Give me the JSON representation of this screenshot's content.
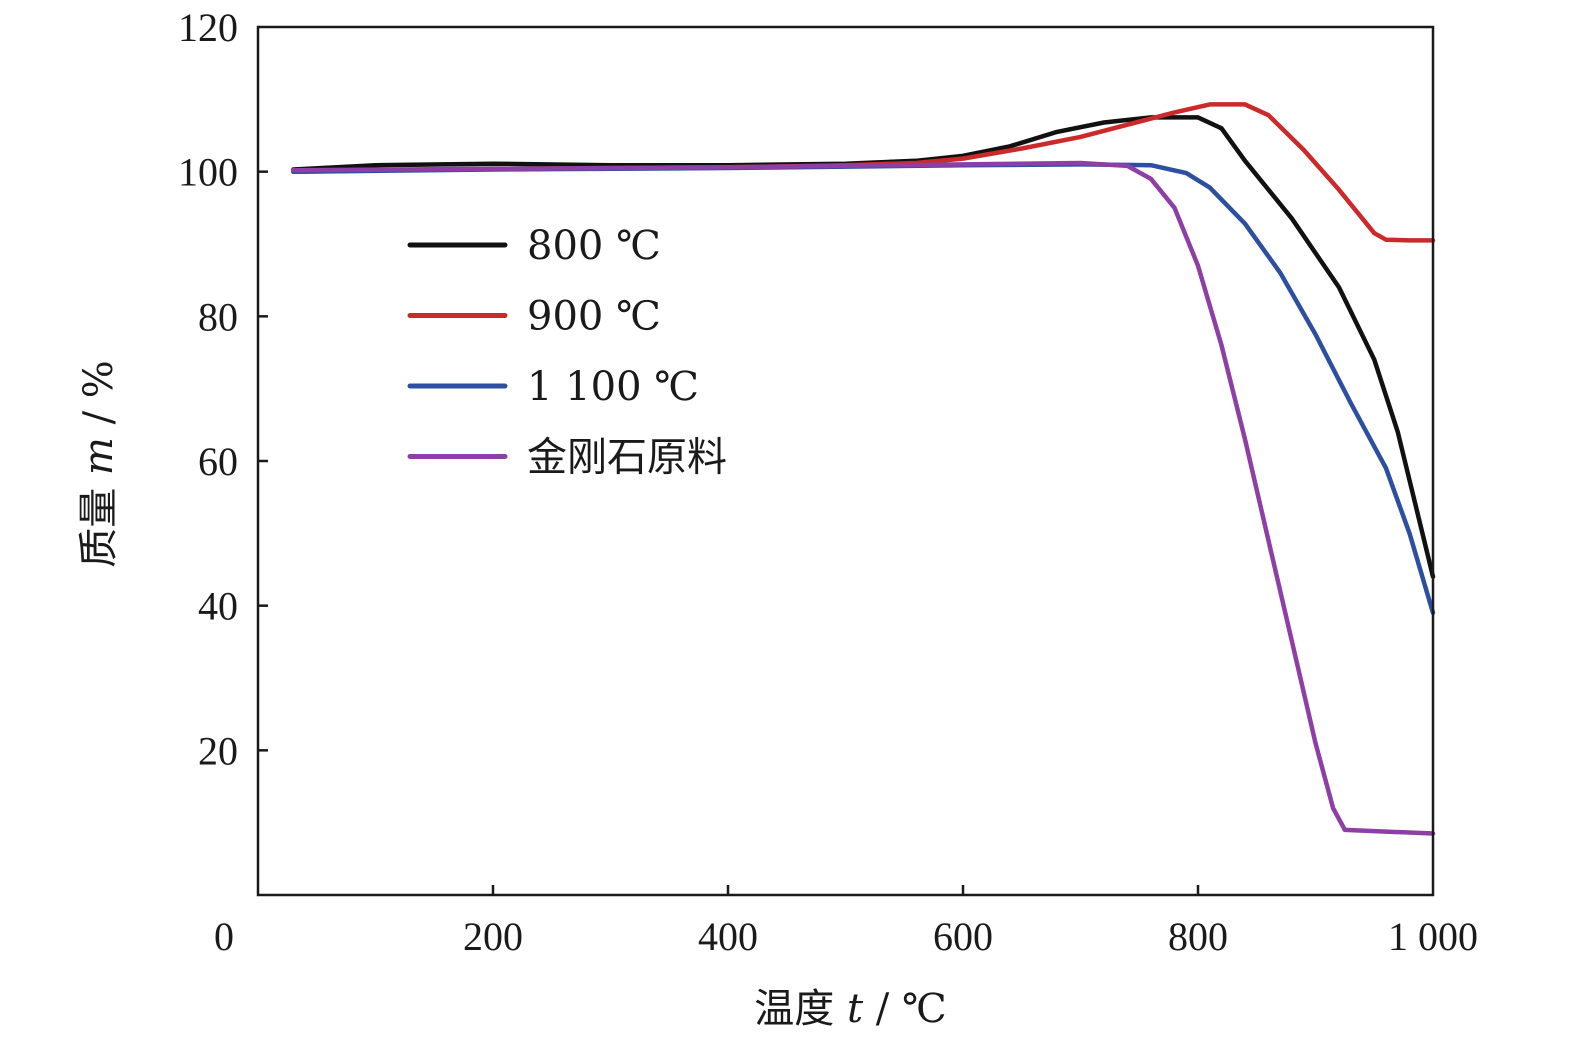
{
  "chart_data": {
    "type": "line",
    "title": "",
    "xlabel": {
      "prefix": "温度 ",
      "var": "t",
      "suffix": " / ℃"
    },
    "ylabel": {
      "prefix": "质量 ",
      "var": "m",
      "suffix": " / %"
    },
    "xlim": [
      0,
      1000
    ],
    "ylim": [
      0,
      120
    ],
    "xticks": [
      {
        "value": 0,
        "label": "0"
      },
      {
        "value": 200,
        "label": "200"
      },
      {
        "value": 400,
        "label": "400"
      },
      {
        "value": 600,
        "label": "600"
      },
      {
        "value": 800,
        "label": "800"
      },
      {
        "value": 1000,
        "label": "1 000"
      }
    ],
    "yticks": [
      {
        "value": 20,
        "label": "20"
      },
      {
        "value": 40,
        "label": "40"
      },
      {
        "value": 60,
        "label": "60"
      },
      {
        "value": 80,
        "label": "80"
      },
      {
        "value": 100,
        "label": "100"
      },
      {
        "value": 120,
        "label": "120"
      }
    ],
    "grid": false,
    "legend_position": "upper-left",
    "series": [
      {
        "name": "800 ℃",
        "color": "#111111",
        "points": [
          [
            30,
            100.3
          ],
          [
            100,
            100.9
          ],
          [
            200,
            101.1
          ],
          [
            300,
            100.9
          ],
          [
            400,
            100.9
          ],
          [
            500,
            101.1
          ],
          [
            560,
            101.5
          ],
          [
            600,
            102.2
          ],
          [
            640,
            103.5
          ],
          [
            680,
            105.5
          ],
          [
            720,
            106.8
          ],
          [
            760,
            107.5
          ],
          [
            800,
            107.5
          ],
          [
            820,
            106.0
          ],
          [
            840,
            101.5
          ],
          [
            880,
            93.5
          ],
          [
            920,
            84.0
          ],
          [
            950,
            74.0
          ],
          [
            970,
            64.0
          ],
          [
            985,
            54.0
          ],
          [
            1000,
            44.0
          ]
        ]
      },
      {
        "name": "900 ℃",
        "color": "#cc2a2a",
        "points": [
          [
            30,
            100.0
          ],
          [
            200,
            100.4
          ],
          [
            400,
            100.6
          ],
          [
            500,
            100.9
          ],
          [
            560,
            101.2
          ],
          [
            600,
            101.8
          ],
          [
            650,
            103.2
          ],
          [
            700,
            104.8
          ],
          [
            740,
            106.5
          ],
          [
            780,
            108.2
          ],
          [
            810,
            109.3
          ],
          [
            840,
            109.3
          ],
          [
            860,
            107.8
          ],
          [
            890,
            103.0
          ],
          [
            920,
            97.5
          ],
          [
            950,
            91.5
          ],
          [
            960,
            90.6
          ],
          [
            980,
            90.5
          ],
          [
            1000,
            90.5
          ]
        ]
      },
      {
        "name": "1 100 ℃",
        "color": "#2d4fa0",
        "points": [
          [
            30,
            100.0
          ],
          [
            200,
            100.3
          ],
          [
            400,
            100.5
          ],
          [
            600,
            100.9
          ],
          [
            700,
            101.0
          ],
          [
            760,
            100.9
          ],
          [
            790,
            99.8
          ],
          [
            810,
            97.8
          ],
          [
            840,
            92.8
          ],
          [
            870,
            86.0
          ],
          [
            900,
            77.5
          ],
          [
            930,
            68.0
          ],
          [
            960,
            59.0
          ],
          [
            980,
            50.0
          ],
          [
            1000,
            39.0
          ]
        ]
      },
      {
        "name": "金刚石原料",
        "color": "#8e3fa5",
        "points": [
          [
            30,
            100.2
          ],
          [
            200,
            100.4
          ],
          [
            400,
            100.6
          ],
          [
            600,
            101.0
          ],
          [
            700,
            101.2
          ],
          [
            740,
            100.8
          ],
          [
            760,
            99.0
          ],
          [
            780,
            95.0
          ],
          [
            800,
            87.0
          ],
          [
            820,
            76.0
          ],
          [
            840,
            63.0
          ],
          [
            860,
            49.0
          ],
          [
            880,
            35.0
          ],
          [
            900,
            21.0
          ],
          [
            915,
            12.0
          ],
          [
            925,
            9.0
          ],
          [
            1000,
            8.5
          ]
        ]
      }
    ]
  }
}
